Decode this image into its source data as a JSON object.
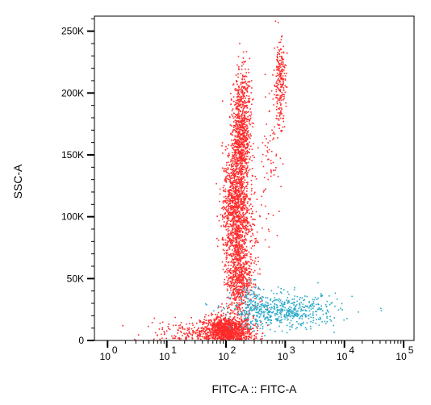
{
  "chart_data": {
    "type": "scatter",
    "xlabel": "FITC-A :: FITC-A",
    "ylabel": "SSC-A",
    "x_scale": "log",
    "xlim": [
      0.6,
      150000
    ],
    "ylim": [
      0,
      262144
    ],
    "x_ticks": [
      {
        "value": 1,
        "base": "10",
        "exp": "0"
      },
      {
        "value": 10,
        "base": "10",
        "exp": "1"
      },
      {
        "value": 100,
        "base": "10",
        "exp": "2"
      },
      {
        "value": 1000,
        "base": "10",
        "exp": "3"
      },
      {
        "value": 10000,
        "base": "10",
        "exp": "4"
      },
      {
        "value": 100000,
        "base": "10",
        "exp": "5"
      }
    ],
    "y_ticks": [
      {
        "value": 0,
        "label": "0"
      },
      {
        "value": 50000,
        "label": "50K"
      },
      {
        "value": 100000,
        "label": "100K"
      },
      {
        "value": 150000,
        "label": "150K"
      },
      {
        "value": 200000,
        "label": "200K"
      },
      {
        "value": 250000,
        "label": "250K"
      }
    ],
    "series": [
      {
        "color": "#ff2a2a",
        "clusters": [
          {
            "x_log_center": 2.0,
            "x_log_sd": 0.22,
            "y_center": 8000,
            "y_sd": 6000,
            "count": 1300
          },
          {
            "x_log_center": 1.3,
            "x_log_sd": 0.35,
            "y_center": 6000,
            "y_sd": 5000,
            "count": 140
          },
          {
            "x_log_center": 2.2,
            "x_log_sd": 0.1,
            "y_center": 50000,
            "y_sd": 15000,
            "count": 550
          },
          {
            "x_log_center": 2.15,
            "x_log_sd": 0.11,
            "y_center": 105000,
            "y_sd": 25000,
            "count": 1100
          },
          {
            "x_log_center": 2.25,
            "x_log_sd": 0.08,
            "y_center": 165000,
            "y_sd": 22000,
            "count": 750
          },
          {
            "x_log_center": 2.28,
            "x_log_sd": 0.07,
            "y_center": 205000,
            "y_sd": 15000,
            "count": 90
          },
          {
            "x_log_center": 2.9,
            "x_log_sd": 0.05,
            "y_center": 210000,
            "y_sd": 17000,
            "count": 230
          },
          {
            "x_log_center": 2.75,
            "x_log_sd": 0.1,
            "y_center": 150000,
            "y_sd": 25000,
            "count": 70
          },
          {
            "x_log_center": 2.4,
            "x_log_sd": 0.15,
            "y_center": 80000,
            "y_sd": 30000,
            "count": 150
          }
        ]
      },
      {
        "color": "#29a9c9",
        "clusters": [
          {
            "x_log_center": 3.0,
            "x_log_sd": 0.45,
            "y_center": 24000,
            "y_sd": 7000,
            "count": 520
          },
          {
            "x_log_center": 2.45,
            "x_log_sd": 0.12,
            "y_center": 28000,
            "y_sd": 9000,
            "count": 130
          }
        ]
      }
    ]
  }
}
